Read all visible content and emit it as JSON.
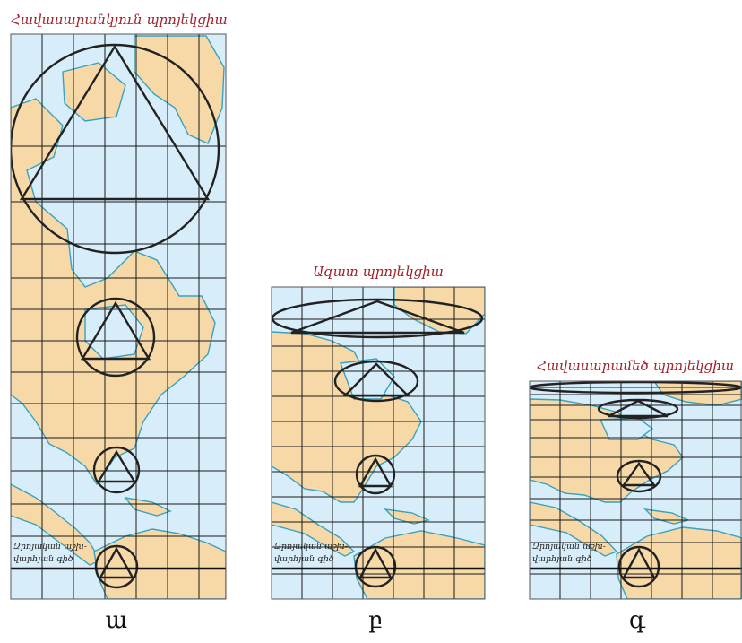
{
  "panels": [
    {
      "id": "a",
      "title": "Հավասարանկյուն պրոյեկցիա",
      "caption": "ա",
      "equator_label_line1": "Զրոյական աշխ-",
      "equator_label_line2": "վարհյան գիծ"
    },
    {
      "id": "b",
      "title": "Ազատ պրոյեկցիա",
      "caption": "բ",
      "equator_label_line1": "Զրոյական աշխ-",
      "equator_label_line2": "վարհյան գիծ"
    },
    {
      "id": "c",
      "title": "Հավասարամեծ պրոյեկցիա",
      "caption": "գ",
      "equator_label_line1": "Զրոյական աշխ-",
      "equator_label_line2": "վարհյան գիծ"
    }
  ],
  "colors": {
    "water": "#d7eefa",
    "land": "#f7d9a8",
    "coast": "#3aa0bf",
    "title": "#a3222b"
  }
}
